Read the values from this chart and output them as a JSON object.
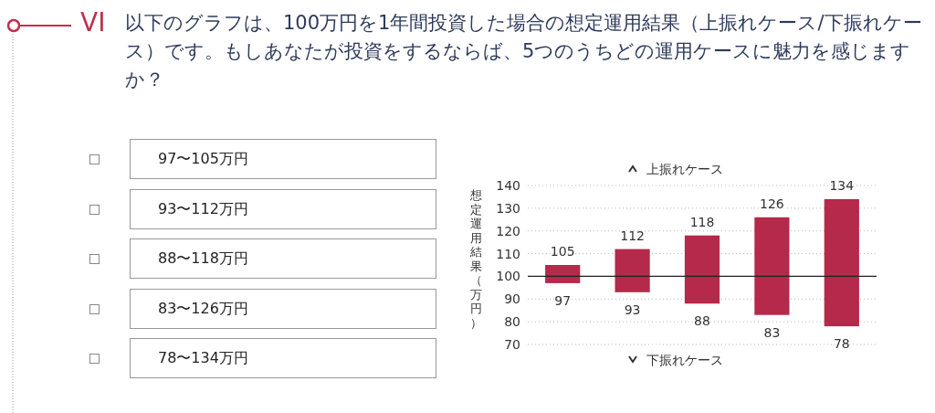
{
  "chart_data": {
    "type": "bar",
    "title": "以下のグラフは、100万円を1年間投資した場合の想定運用結果（上振れケース/下振れケース）です。もしあなたが投資をするならば、5つのうちどの運用ケースに魅力を感じますか？",
    "ylabel": "想定運用結果（万円）",
    "categories": [
      null,
      null,
      null,
      null,
      null
    ],
    "base": [
      97,
      93,
      88,
      83,
      78
    ],
    "values": [
      8,
      19,
      30,
      43,
      56
    ],
    "color": "#b5294b",
    "ylim": [
      70,
      140
    ],
    "yticks": [
      70,
      80,
      90,
      100,
      110,
      120,
      130,
      140
    ],
    "grid": "y",
    "tick_labels": "y",
    "ref_lines": [
      {
        "axis": "y",
        "value": 100,
        "color": "#222222"
      }
    ],
    "annotations": [
      "VI",
      "97〜105万円",
      "93〜112万円",
      "88〜118万円",
      "83〜126万円",
      "78〜134万円",
      "上振れケース",
      "下振れケース",
      {
        "text": "105",
        "y": 105
      },
      {
        "text": "112",
        "y": 112
      },
      {
        "text": "118",
        "y": 118
      },
      {
        "text": "126",
        "y": 126
      },
      {
        "text": "134",
        "y": 134
      },
      {
        "text": "97",
        "y": 97
      },
      {
        "text": "93",
        "y": 93
      },
      {
        "text": "88",
        "y": 88
      },
      {
        "text": "83",
        "y": 83
      },
      {
        "text": "78",
        "y": 78
      }
    ]
  }
}
